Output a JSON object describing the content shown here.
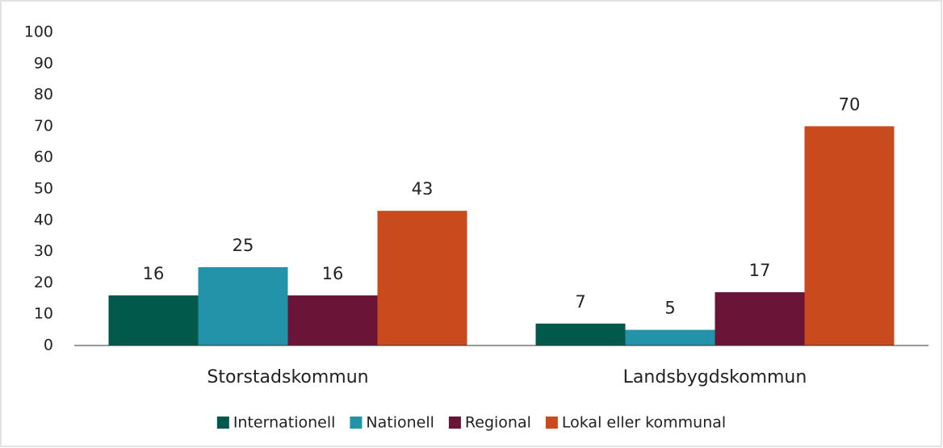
{
  "chart_data": {
    "type": "bar",
    "categories": [
      "Storstadskommun",
      "Landsbygdskommun"
    ],
    "series": [
      {
        "name": "Internationell",
        "color": "#00594a",
        "values": [
          16,
          7
        ]
      },
      {
        "name": "Nationell",
        "color": "#2293a8",
        "values": [
          25,
          5
        ]
      },
      {
        "name": "Regional",
        "color": "#6a1438",
        "values": [
          16,
          17
        ]
      },
      {
        "name": "Lokal eller kommunal",
        "color": "#c94a1c",
        "values": [
          43,
          70
        ]
      }
    ],
    "ylim": [
      0,
      100
    ],
    "yticks": [
      0,
      10,
      20,
      30,
      40,
      50,
      60,
      70,
      80,
      90,
      100
    ],
    "grid": false,
    "legend": "bottom"
  }
}
